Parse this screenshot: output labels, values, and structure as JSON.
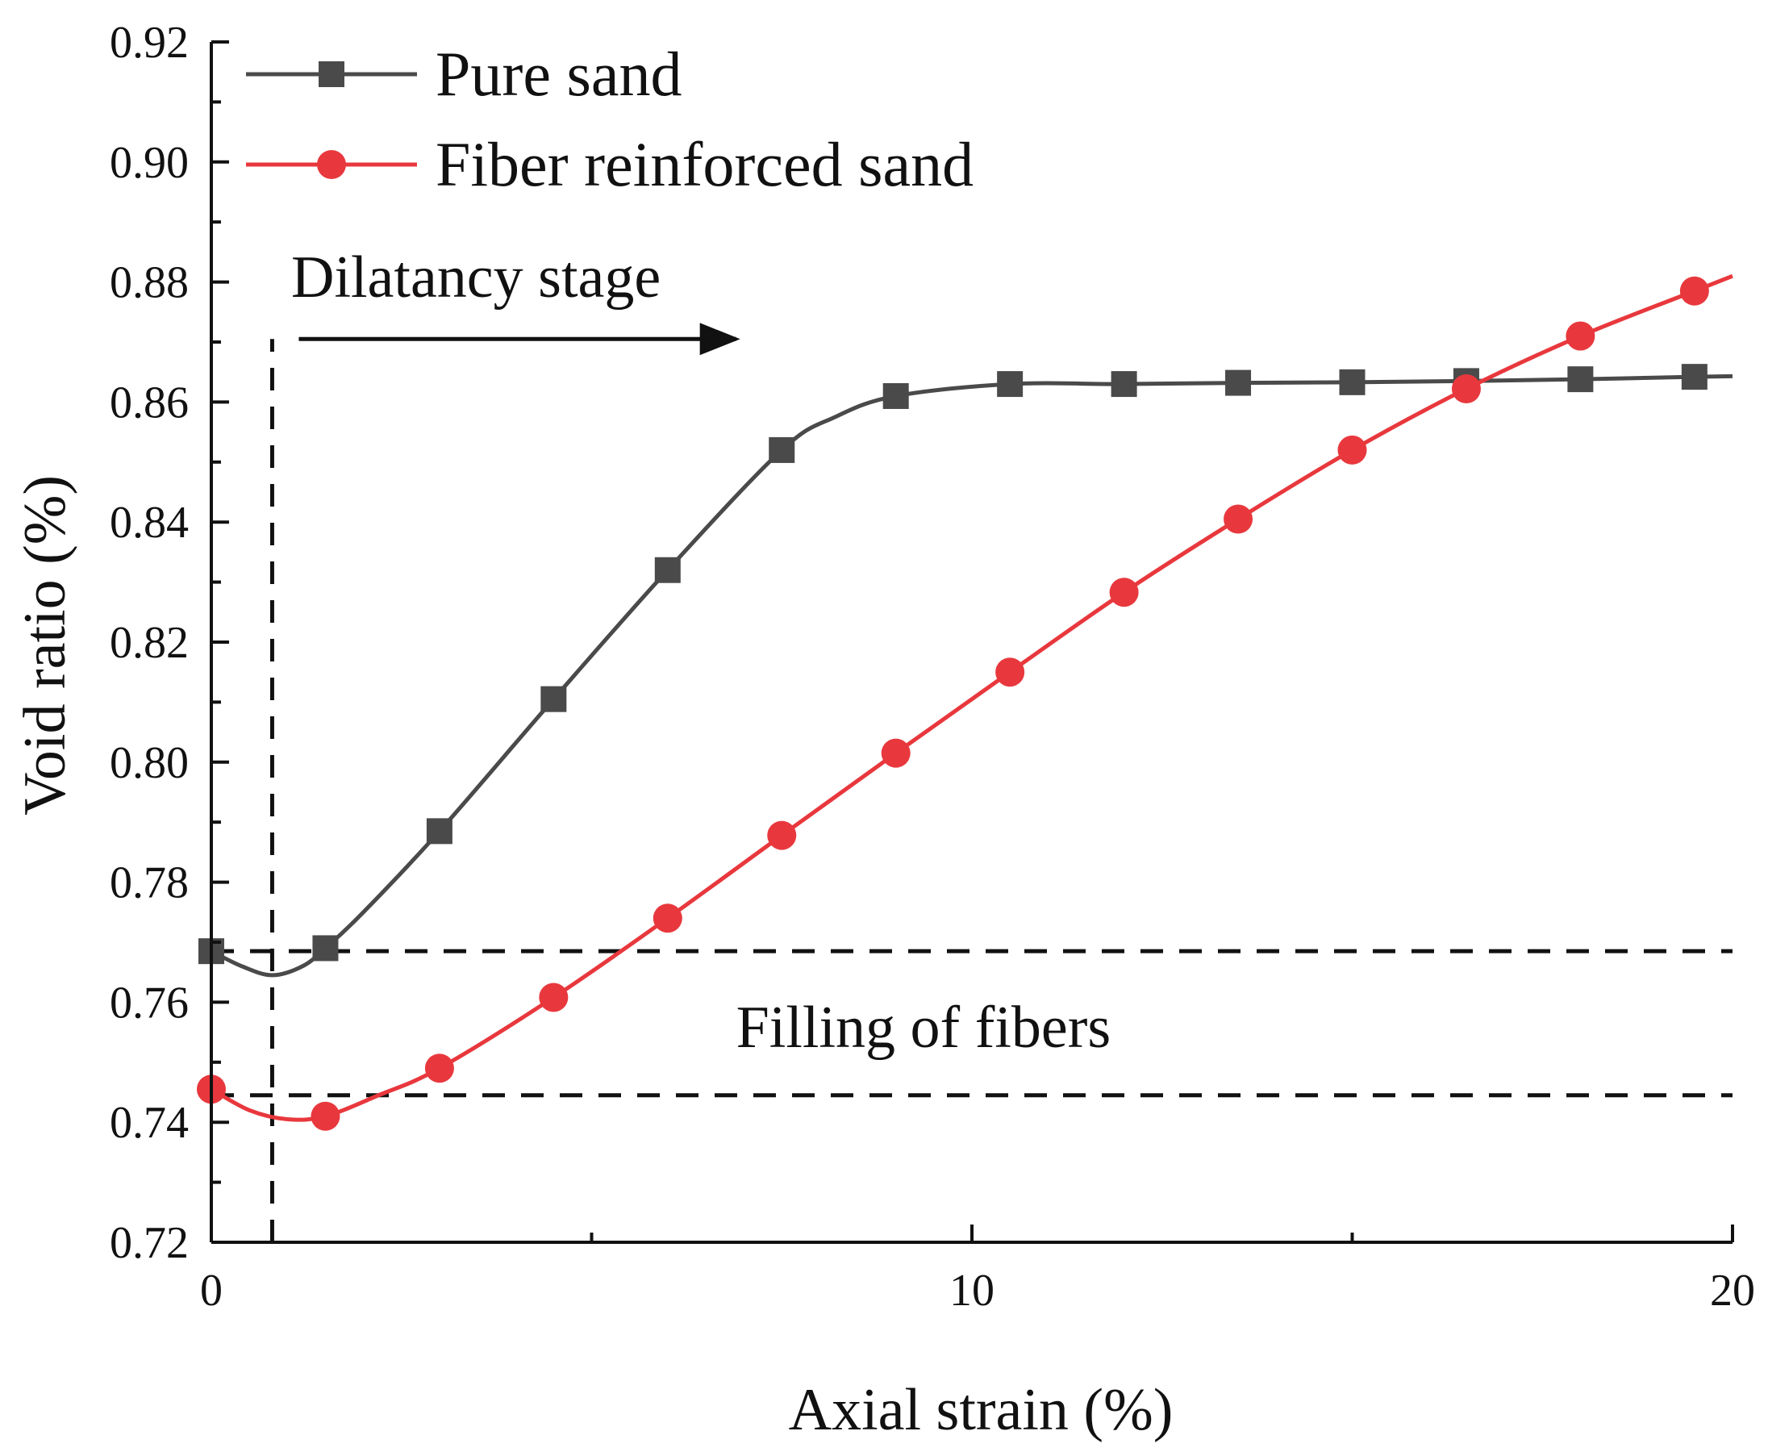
{
  "chart_data": {
    "type": "line",
    "title": "",
    "xlabel": "Axial strain (%)",
    "ylabel": "Void ratio (%)",
    "xlim": [
      0,
      20
    ],
    "ylim": [
      0.72,
      0.92
    ],
    "x_ticks": [
      0,
      10,
      20
    ],
    "x_tick_labels": [
      "0",
      "10",
      "20"
    ],
    "y_ticks": [
      0.72,
      0.74,
      0.76,
      0.78,
      0.8,
      0.82,
      0.84,
      0.86,
      0.88,
      0.9,
      0.92
    ],
    "y_tick_labels": [
      "0.72",
      "0.74",
      "0.76",
      "0.78",
      "0.80",
      "0.82",
      "0.84",
      "0.86",
      "0.88",
      "0.90",
      "0.92"
    ],
    "grid": false,
    "legend_position": "top-left",
    "series": [
      {
        "name": "Pure sand",
        "color": "#4a4a4a",
        "marker": "square",
        "x": [
          0,
          1.5,
          3.0,
          4.5,
          6.0,
          7.5,
          9.0,
          10.5,
          12.0,
          13.5,
          15.0,
          16.5,
          18.0,
          19.5
        ],
        "y": [
          0.7685,
          0.769,
          0.7885,
          0.8105,
          0.832,
          0.852,
          0.861,
          0.863,
          0.863,
          0.8632,
          0.8633,
          0.8635,
          0.8638,
          0.8642
        ],
        "curve_x": [
          0,
          0.4,
          0.8,
          1.2,
          1.5,
          2.0,
          3.0,
          4.5,
          6.0,
          7.5,
          8.2,
          9.0,
          10.5,
          12.0,
          13.5,
          15.0,
          16.5,
          18.0,
          19.5,
          20.0
        ],
        "curve_y": [
          0.7685,
          0.766,
          0.7645,
          0.766,
          0.769,
          0.775,
          0.7885,
          0.8105,
          0.832,
          0.852,
          0.8575,
          0.861,
          0.863,
          0.863,
          0.8632,
          0.8633,
          0.8635,
          0.8638,
          0.8642,
          0.8643
        ]
      },
      {
        "name": "Fiber reinforced sand",
        "color": "#e8383d",
        "marker": "circle",
        "x": [
          0,
          1.5,
          3.0,
          4.5,
          6.0,
          7.5,
          9.0,
          10.5,
          12.0,
          13.5,
          15.0,
          16.5,
          18.0,
          19.5
        ],
        "y": [
          0.7455,
          0.741,
          0.749,
          0.7608,
          0.774,
          0.7878,
          0.8015,
          0.815,
          0.8283,
          0.8405,
          0.852,
          0.8622,
          0.871,
          0.8785
        ],
        "curve_x": [
          0,
          0.5,
          1.0,
          1.5,
          2.2,
          3.0,
          4.5,
          6.0,
          7.5,
          9.0,
          10.5,
          12.0,
          13.5,
          15.0,
          16.5,
          18.0,
          19.5,
          20.0
        ],
        "curve_y": [
          0.7455,
          0.742,
          0.7405,
          0.741,
          0.7445,
          0.749,
          0.7608,
          0.774,
          0.7878,
          0.8015,
          0.815,
          0.8283,
          0.8405,
          0.852,
          0.8622,
          0.871,
          0.8785,
          0.881
        ]
      }
    ],
    "reference_lines": [
      {
        "orientation": "vertical",
        "x": 0.8,
        "y_from": 0.72,
        "y_to": 0.8705
      },
      {
        "orientation": "horizontal",
        "y": 0.7685,
        "x_from": 0,
        "x_to": 20
      },
      {
        "orientation": "horizontal",
        "y": 0.7445,
        "x_from": 0,
        "x_to": 20
      }
    ],
    "annotations": [
      {
        "text": "Dilatancy stage",
        "x": 1.05,
        "y": 0.8775
      },
      {
        "text": "Filling of fibers",
        "x": 6.9,
        "y": 0.7525
      }
    ],
    "arrow": {
      "x_from": 1.15,
      "x_to": 6.9,
      "y": 0.8705
    }
  }
}
